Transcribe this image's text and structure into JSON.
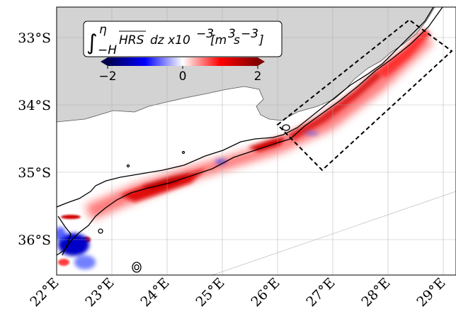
{
  "map": {
    "lat_labels": [
      "33°S",
      "34°S",
      "35°S",
      "36°S"
    ],
    "lon_labels": [
      "22°E",
      "23°E",
      "24°E",
      "25°E",
      "26°E",
      "27°E",
      "28°E",
      "29°E"
    ],
    "land_color": "#d3d3d3",
    "legend": {
      "int_upper": "η",
      "int_lower": "−H",
      "quantity": "HRS",
      "expression": "dz x10",
      "exponent": "−3",
      "units_open": "[m",
      "units_exp1": "3",
      "units_mid": "s",
      "units_exp2": "−3",
      "units_close": "]"
    },
    "colorbar": {
      "ticks": [
        "−2",
        "0",
        "2"
      ],
      "colormap": "seismic",
      "range": [
        -2,
        2
      ]
    }
  }
}
